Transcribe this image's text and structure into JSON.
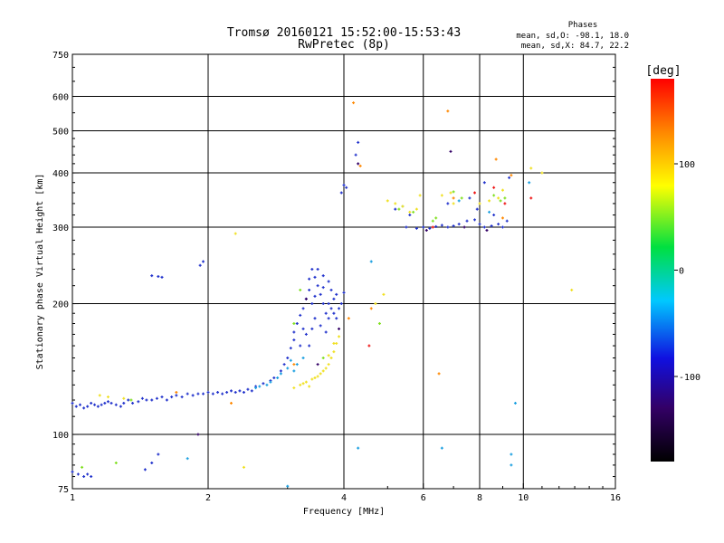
{
  "chart_data": {
    "type": "scatter",
    "title": "Tromsø 20160121 15:52:00-15:53:43",
    "subtitle": "RwPretec (8p)",
    "xlabel": "Frequency [MHz]",
    "ylabel": "Stationary phase Virtual Height [km]",
    "x_scale": "log",
    "y_scale": "log",
    "xlim": [
      1,
      16
    ],
    "ylim": [
      75,
      750
    ],
    "x_ticks": [
      1,
      2,
      4,
      6,
      8,
      10,
      16
    ],
    "y_ticks": [
      75,
      100,
      200,
      300,
      400,
      500,
      600,
      750
    ],
    "x_grid": [
      2,
      4,
      6,
      8,
      10
    ],
    "y_grid": [
      100,
      200,
      300,
      400,
      500,
      600
    ],
    "grid": true,
    "phase_stats": {
      "heading": "Phases",
      "line_o": "mean, sd,O: -98.1, 18.0",
      "line_x": "mean, sd,X:  84.7, 22.2"
    },
    "colorbar": {
      "label": "[deg]",
      "ticks": [
        "100",
        "0",
        "-100"
      ],
      "tick_values": [
        100,
        0,
        -100
      ],
      "range": [
        -180,
        180
      ]
    },
    "series": [
      {
        "color": "#2233cc",
        "points": [
          [
            1.0,
            118
          ],
          [
            1.02,
            116
          ],
          [
            1.04,
            117
          ],
          [
            1.06,
            115
          ],
          [
            1.08,
            116
          ],
          [
            1.1,
            118
          ],
          [
            1.12,
            117
          ],
          [
            1.14,
            116
          ],
          [
            1.16,
            117
          ],
          [
            1.18,
            118
          ],
          [
            1.2,
            119
          ],
          [
            1.22,
            118
          ],
          [
            1.25,
            117
          ],
          [
            1.28,
            116
          ],
          [
            1.3,
            118
          ],
          [
            1.33,
            120
          ],
          [
            1.36,
            118
          ],
          [
            1.4,
            119
          ],
          [
            1.43,
            121
          ],
          [
            1.46,
            120
          ],
          [
            1.5,
            120
          ],
          [
            1.54,
            121
          ],
          [
            1.58,
            122
          ],
          [
            1.62,
            120
          ],
          [
            1.66,
            122
          ],
          [
            1.7,
            123
          ],
          [
            1.75,
            122
          ],
          [
            1.8,
            124
          ],
          [
            1.85,
            123
          ],
          [
            1.9,
            124
          ],
          [
            1.95,
            124
          ],
          [
            2.0,
            125
          ],
          [
            2.05,
            124
          ],
          [
            2.1,
            125
          ],
          [
            2.15,
            124
          ],
          [
            2.2,
            125
          ],
          [
            2.25,
            126
          ],
          [
            2.3,
            125
          ],
          [
            2.35,
            126
          ],
          [
            2.4,
            125
          ],
          [
            2.45,
            127
          ],
          [
            2.5,
            126
          ],
          [
            1.0,
            82
          ],
          [
            1.03,
            81
          ],
          [
            1.06,
            80
          ],
          [
            1.08,
            81
          ],
          [
            1.1,
            80
          ],
          [
            1.45,
            83
          ],
          [
            1.5,
            86
          ],
          [
            1.55,
            90
          ],
          [
            1.5,
            232
          ],
          [
            1.55,
            231
          ],
          [
            1.58,
            230
          ],
          [
            1.92,
            245
          ],
          [
            1.95,
            250
          ],
          [
            2.55,
            129
          ],
          [
            2.65,
            131
          ],
          [
            2.75,
            133
          ],
          [
            2.8,
            135
          ],
          [
            2.9,
            140
          ],
          [
            2.95,
            145
          ],
          [
            3.0,
            150
          ],
          [
            3.05,
            158
          ],
          [
            3.1,
            165
          ],
          [
            3.1,
            172
          ],
          [
            3.15,
            180
          ],
          [
            3.2,
            188
          ],
          [
            3.25,
            195
          ],
          [
            3.3,
            205
          ],
          [
            3.35,
            215
          ],
          [
            3.35,
            228
          ],
          [
            3.4,
            240
          ],
          [
            3.45,
            230
          ],
          [
            3.5,
            220
          ],
          [
            3.55,
            210
          ],
          [
            3.6,
            200
          ],
          [
            3.65,
            190
          ],
          [
            3.7,
            185
          ],
          [
            3.75,
            195
          ],
          [
            3.8,
            205
          ],
          [
            3.85,
            210
          ],
          [
            3.5,
            240
          ],
          [
            3.6,
            232
          ],
          [
            3.7,
            225
          ],
          [
            3.75,
            215
          ],
          [
            3.3,
            170
          ],
          [
            3.4,
            175
          ],
          [
            3.45,
            185
          ],
          [
            3.55,
            178
          ],
          [
            3.65,
            172
          ],
          [
            3.2,
            160
          ],
          [
            3.35,
            160
          ],
          [
            3.4,
            200
          ],
          [
            3.6,
            218
          ],
          [
            3.8,
            190
          ],
          [
            3.95,
            200
          ],
          [
            4.0,
            212
          ],
          [
            3.9,
            195
          ],
          [
            3.25,
            175
          ],
          [
            3.45,
            208
          ],
          [
            3.7,
            200
          ],
          [
            3.85,
            185
          ],
          [
            4.0,
            375
          ],
          [
            4.05,
            370
          ],
          [
            3.95,
            360
          ],
          [
            4.25,
            440
          ],
          [
            4.3,
            470
          ],
          [
            5.5,
            300
          ],
          [
            5.8,
            298
          ],
          [
            6.0,
            300
          ],
          [
            6.2,
            298
          ],
          [
            6.4,
            301
          ],
          [
            6.6,
            303
          ],
          [
            6.8,
            300
          ],
          [
            7.0,
            302
          ],
          [
            7.2,
            305
          ],
          [
            7.5,
            310
          ],
          [
            7.8,
            312
          ],
          [
            8.0,
            305
          ],
          [
            8.2,
            300
          ],
          [
            8.5,
            302
          ],
          [
            8.8,
            305
          ],
          [
            9.0,
            300
          ],
          [
            5.2,
            330
          ],
          [
            5.6,
            320
          ],
          [
            6.8,
            340
          ],
          [
            7.6,
            350
          ],
          [
            7.9,
            330
          ],
          [
            8.6,
            320
          ],
          [
            9.2,
            310
          ],
          [
            8.2,
            380
          ],
          [
            9.3,
            390
          ]
        ]
      },
      {
        "color": "#1a9fe0",
        "points": [
          [
            2.55,
            128
          ],
          [
            2.7,
            130
          ],
          [
            2.85,
            135
          ],
          [
            2.9,
            138
          ],
          [
            3.0,
            142
          ],
          [
            3.05,
            148
          ],
          [
            3.15,
            145
          ],
          [
            3.25,
            150
          ],
          [
            2.6,
            129
          ],
          [
            2.75,
            132
          ],
          [
            3.1,
            140
          ],
          [
            4.3,
            93
          ],
          [
            6.6,
            93
          ],
          [
            9.4,
            90
          ],
          [
            9.4,
            85
          ],
          [
            9.6,
            118
          ],
          [
            5.4,
            335
          ],
          [
            8.4,
            325
          ],
          [
            7.2,
            345
          ],
          [
            4.6,
            250
          ],
          [
            10.3,
            380
          ],
          [
            1.8,
            88
          ],
          [
            3.0,
            76
          ]
        ]
      },
      {
        "color": "#f0e020",
        "points": [
          [
            3.1,
            128
          ],
          [
            3.2,
            130
          ],
          [
            3.3,
            132
          ],
          [
            3.4,
            134
          ],
          [
            3.5,
            136
          ],
          [
            3.6,
            140
          ],
          [
            3.7,
            145
          ],
          [
            3.75,
            150
          ],
          [
            3.8,
            155
          ],
          [
            3.85,
            162
          ],
          [
            3.9,
            168
          ],
          [
            3.25,
            131
          ],
          [
            3.45,
            135
          ],
          [
            3.55,
            138
          ],
          [
            3.65,
            142
          ],
          [
            3.35,
            129
          ],
          [
            3.7,
            152
          ],
          [
            3.8,
            162
          ],
          [
            1.2,
            122
          ],
          [
            1.3,
            121
          ],
          [
            1.15,
            123
          ],
          [
            5.0,
            345
          ],
          [
            5.2,
            340
          ],
          [
            5.4,
            335
          ],
          [
            5.6,
            325
          ],
          [
            5.8,
            330
          ],
          [
            6.6,
            355
          ],
          [
            6.9,
            360
          ],
          [
            7.0,
            340
          ],
          [
            8.0,
            340
          ],
          [
            8.4,
            345
          ],
          [
            8.8,
            350
          ],
          [
            9.0,
            365
          ],
          [
            5.9,
            355
          ],
          [
            4.9,
            210
          ],
          [
            4.7,
            200
          ],
          [
            2.3,
            290
          ],
          [
            2.4,
            84
          ],
          [
            10.4,
            410
          ],
          [
            11.0,
            400
          ],
          [
            12.8,
            215
          ]
        ]
      },
      {
        "color": "#80e020",
        "points": [
          [
            5.3,
            330
          ],
          [
            5.7,
            325
          ],
          [
            6.3,
            310
          ],
          [
            7.3,
            350
          ],
          [
            8.6,
            355
          ],
          [
            8.9,
            345
          ],
          [
            9.1,
            350
          ],
          [
            6.4,
            315
          ],
          [
            7.0,
            362
          ],
          [
            3.2,
            215
          ],
          [
            3.1,
            180
          ],
          [
            3.6,
            150
          ],
          [
            4.8,
            180
          ],
          [
            1.05,
            84
          ],
          [
            1.25,
            86
          ],
          [
            1.35,
            120
          ]
        ]
      },
      {
        "color": "#ff8800",
        "points": [
          [
            6.5,
            138
          ],
          [
            4.2,
            580
          ],
          [
            4.35,
            415
          ],
          [
            7.0,
            350
          ],
          [
            8.7,
            430
          ],
          [
            9.0,
            315
          ],
          [
            9.4,
            395
          ],
          [
            3.1,
            145
          ],
          [
            2.25,
            118
          ],
          [
            1.7,
            125
          ],
          [
            6.8,
            555
          ],
          [
            4.6,
            195
          ],
          [
            4.1,
            185
          ]
        ]
      },
      {
        "color": "#ee1111",
        "points": [
          [
            4.55,
            160
          ],
          [
            8.6,
            370
          ],
          [
            9.1,
            340
          ],
          [
            6.3,
            300
          ],
          [
            10.4,
            350
          ],
          [
            7.8,
            360
          ]
        ]
      },
      {
        "color": "#330066",
        "points": [
          [
            3.5,
            145
          ],
          [
            3.3,
            205
          ],
          [
            3.9,
            175
          ],
          [
            6.1,
            295
          ],
          [
            7.4,
            300
          ],
          [
            8.3,
            295
          ],
          [
            4.3,
            420
          ],
          [
            6.9,
            448
          ],
          [
            1.9,
            100
          ]
        ]
      }
    ]
  }
}
